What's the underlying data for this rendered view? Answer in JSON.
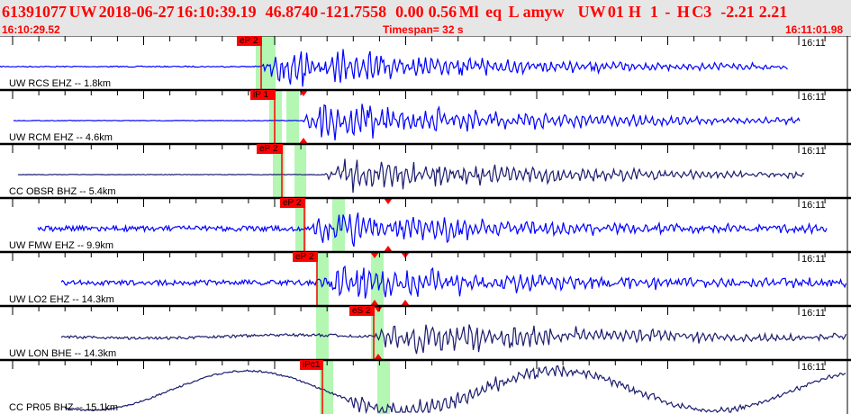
{
  "header": {
    "event_line": "61391077 UW 2018-06-27 16:10:39.19    46.8740 -121.7558    0.00  0.56 Ml   eq   L  amyw      UW 01  H    1   -   H C3    -2.21  2.21",
    "start_time": "16:10:29.52",
    "timespan": "Timespan=  32 s",
    "end_time": "16:11:01.98"
  },
  "colors": {
    "header_text": "#ff0000",
    "pick": "#ff0000",
    "window": "#b3f7b3",
    "trace_short": "#0000ff",
    "trace_broad": "#1c1c6e"
  },
  "channels": [
    {
      "label": "UW RCS EHZ -- 1.8km",
      "time": "16:11",
      "pick": "eP 2",
      "color": "trace_short"
    },
    {
      "label": "UW RCM EHZ -- 4.6km",
      "time": "16:11",
      "pick": "iP 1",
      "color": "trace_short"
    },
    {
      "label": "CC OBSR BHZ -- 5.4km",
      "time": "16:11",
      "pick": "eP 2",
      "color": "trace_broad"
    },
    {
      "label": "UW FMW EHZ -- 9.9km",
      "time": "16:11",
      "pick": "eP 2",
      "color": "trace_short"
    },
    {
      "label": "UW LO2 EHZ -- 14.3km",
      "time": "16:11",
      "pick": "eP 2",
      "color": "trace_short"
    },
    {
      "label": "UW LON BHE -- 14.3km",
      "time": "16:11",
      "pick": "eS 2",
      "color": "trace_broad"
    },
    {
      "label": "CC PR05 BHZ -- 15.1km",
      "time": "16:11",
      "pick": "iPc1",
      "color": "trace_broad"
    }
  ]
}
